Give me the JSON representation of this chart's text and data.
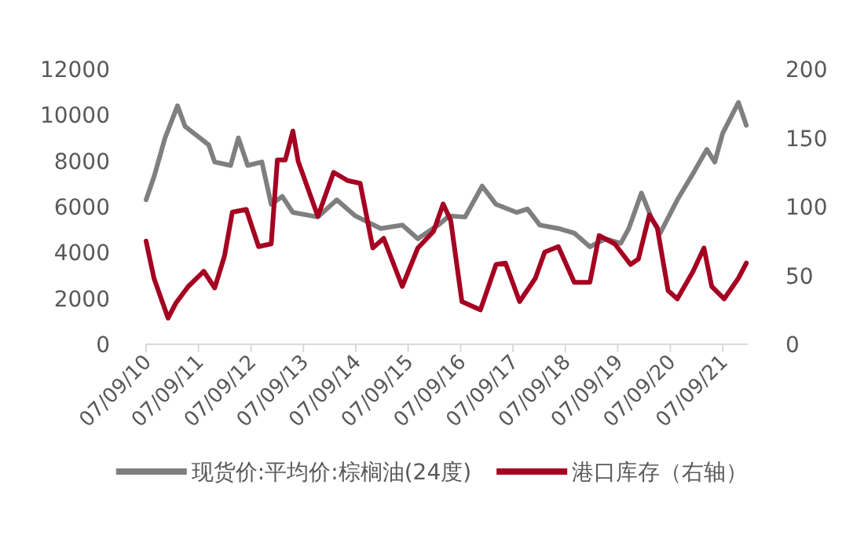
{
  "chart_data": {
    "type": "line",
    "x": [
      "2010-07-09",
      "2010-09-02",
      "2010-11-18",
      "2011-02-13",
      "2011-04-07",
      "2011-09-18",
      "2011-10-30",
      "2012-02-18",
      "2012-04-12",
      "2012-06-16",
      "2012-09-23",
      "2012-11-27",
      "2013-02-12",
      "2013-04-27",
      "2013-10-18",
      "2014-02-27",
      "2014-07-06",
      "2014-12-30",
      "2015-05-29",
      "2015-09-15",
      "2016-02-04",
      "2016-04-21",
      "2016-08-09",
      "2016-12-06",
      "2017-03-13",
      "2017-08-03",
      "2017-10-18",
      "2018-01-12",
      "2018-05-21",
      "2018-09-09",
      "2018-12-27",
      "2019-04-15",
      "2019-07-30",
      "2019-09-24",
      "2019-12-21",
      "2020-03-07",
      "2020-04-30",
      "2020-08-27",
      "2020-12-15",
      "2021-03-21",
      "2021-05-15",
      "2021-07-09",
      "2021-10-27",
      "2021-12-21"
    ],
    "series": [
      {
        "name": "现货价:平均价:棕榈油(24度)",
        "color": "#7f7f7f",
        "values": [
          6300,
          7300,
          9000,
          10400,
          9500,
          8700,
          7950,
          7800,
          9000,
          7800,
          7950,
          6100,
          6450,
          5750,
          5550,
          6300,
          5600,
          5050,
          5200,
          4600,
          5200,
          5600,
          5550,
          6900,
          6100,
          5750,
          5900,
          5200,
          5050,
          4850,
          4250,
          4600,
          4400,
          5050,
          6600,
          5400,
          4850,
          6300,
          7450,
          8500,
          7950,
          9200,
          10550,
          9550
        ]
      },
      {
        "name": "港口库存（右轴）",
        "color": "#a50021",
        "axis": "y2",
        "x": [
          "2010-07-09",
          "2010-09-02",
          "2010-12-09",
          "2011-02-02",
          "2011-04-29",
          "2011-08-15",
          "2011-10-30",
          "2012-01-06",
          "2012-03-01",
          "2012-06-06",
          "2012-08-31",
          "2012-11-27",
          "2013-01-09",
          "2013-03-05",
          "2013-04-27",
          "2013-06-03",
          "2013-10-18",
          "2014-02-05",
          "2014-05-13",
          "2014-08-09",
          "2014-11-05",
          "2015-01-20",
          "2015-05-29",
          "2015-09-15",
          "2016-01-02",
          "2016-03-09",
          "2016-05-01",
          "2016-07-18",
          "2016-11-24",
          "2017-03-13",
          "2017-05-18",
          "2017-08-24",
          "2017-12-12",
          "2018-02-15",
          "2018-05-21",
          "2018-09-09",
          "2018-12-27",
          "2019-03-01",
          "2019-06-18",
          "2019-10-06",
          "2019-11-30",
          "2020-02-14",
          "2020-04-09",
          "2020-06-24",
          "2020-08-27",
          "2020-12-15",
          "2021-03-01",
          "2021-04-24",
          "2021-07-20",
          "2021-10-27",
          "2021-12-21"
        ],
        "values": [
          75,
          48,
          19,
          30,
          42,
          53,
          41,
          64,
          96,
          98,
          71,
          73,
          134,
          134,
          155,
          133,
          93,
          125,
          119,
          117,
          70,
          77,
          42,
          70,
          82,
          102,
          90,
          31,
          25,
          58,
          59,
          31,
          48,
          67,
          71,
          45,
          45,
          79,
          73,
          58,
          62,
          94,
          85,
          39,
          33,
          53,
          70,
          42,
          33,
          48,
          59
        ]
      }
    ],
    "xlim": [
      "2010-07-09",
      "2021-12-31"
    ],
    "xticks": [
      {
        "value": "2010-07-09",
        "label": "07/09/10"
      },
      {
        "value": "2011-07-09",
        "label": "07/09/11"
      },
      {
        "value": "2012-07-09",
        "label": "07/09/12"
      },
      {
        "value": "2013-07-09",
        "label": "07/09/13"
      },
      {
        "value": "2014-07-09",
        "label": "07/09/14"
      },
      {
        "value": "2015-07-09",
        "label": "07/09/15"
      },
      {
        "value": "2016-07-09",
        "label": "07/09/16"
      },
      {
        "value": "2017-07-09",
        "label": "07/09/17"
      },
      {
        "value": "2018-07-09",
        "label": "07/09/18"
      },
      {
        "value": "2019-07-09",
        "label": "07/09/19"
      },
      {
        "value": "2020-07-09",
        "label": "07/09/20"
      },
      {
        "value": "2021-07-09",
        "label": "07/09/21"
      }
    ],
    "ylim": [
      0,
      12000
    ],
    "yticks": [
      0,
      2000,
      4000,
      6000,
      8000,
      10000,
      12000
    ],
    "y2lim": [
      0,
      200
    ],
    "y2ticks": [
      0,
      50,
      100,
      150,
      200
    ],
    "grid": false,
    "legend": "bottom",
    "marker": "none",
    "line_style": "solid"
  }
}
